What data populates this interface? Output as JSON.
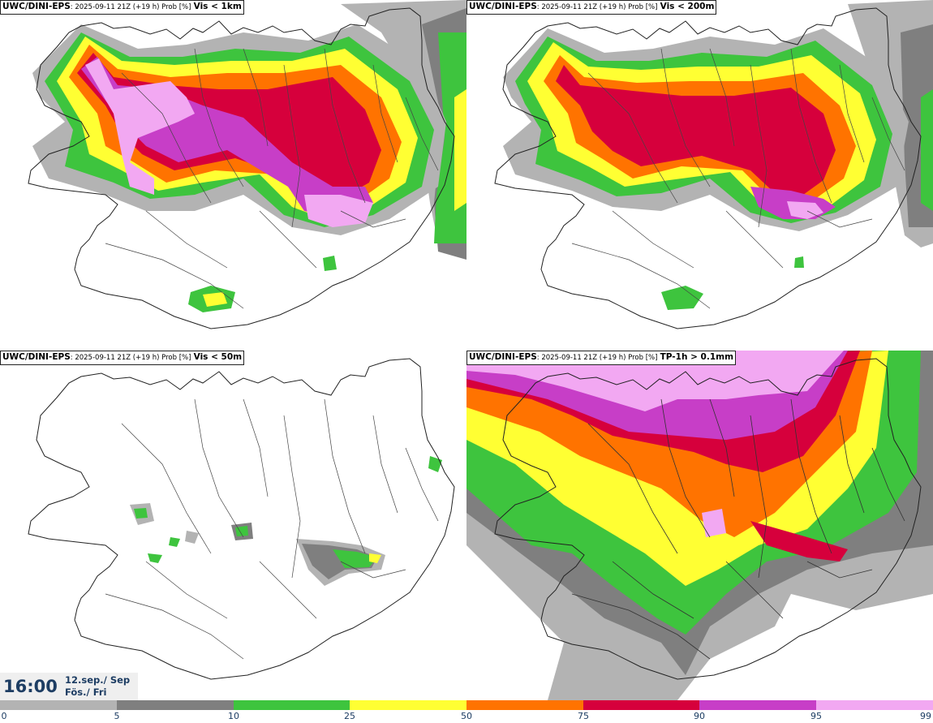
{
  "panels": [
    {
      "source": "UWC/DINI-EPS",
      "meta": ": 2025-09-11 21Z (+19 h) Prob [%]",
      "field": "Vis < 1km"
    },
    {
      "source": "UWC/DINI-EPS",
      "meta": ": 2025-09-11 21Z (+19 h) Prob [%]",
      "field": "Vis < 200m"
    },
    {
      "source": "UWC/DINI-EPS",
      "meta": ": 2025-09-11 21Z (+19 h) Prob [%]",
      "field": "Vis < 50m"
    },
    {
      "source": "UWC/DINI-EPS",
      "meta": ": 2025-09-11 21Z (+19 h) Prob [%]",
      "field": "TP-1h > 0.1mm"
    }
  ],
  "valid_time": {
    "time": "16:00",
    "date_line1": "12.sep./ Sep",
    "date_line2": "Fös./ Fri"
  },
  "colorbar": {
    "ticks": [
      "0",
      "5",
      "10",
      "25",
      "50",
      "75",
      "90",
      "95",
      "99"
    ],
    "colors": [
      "#ffffff",
      "#b3b3b3",
      "#7f7f7f",
      "#3ec43e",
      "#ffff33",
      "#ff7300",
      "#d6003c",
      "#c73ec7",
      "#f2a8f2"
    ]
  }
}
